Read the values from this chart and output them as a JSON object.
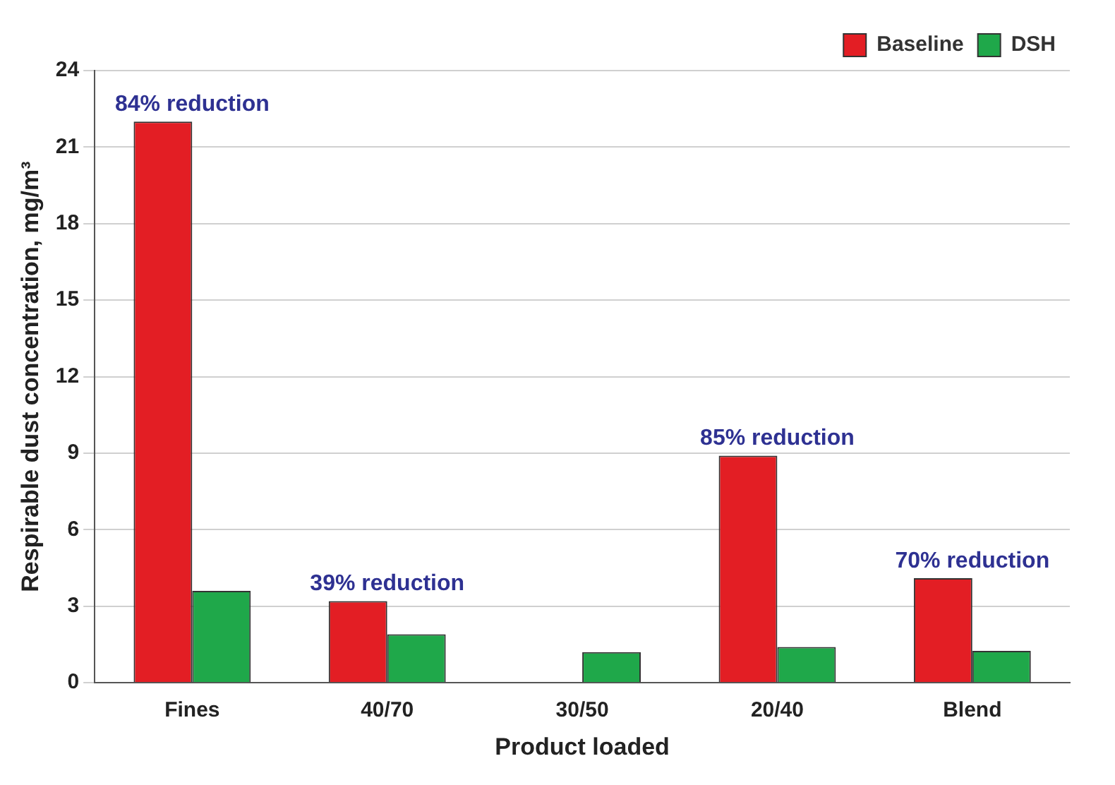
{
  "chart_data": {
    "type": "bar",
    "xlabel": "Product loaded",
    "ylabel": "Respirable dust concentration, mg/m³",
    "categories": [
      "Fines",
      "40/70",
      "30/50",
      "20/40",
      "Blend"
    ],
    "series": [
      {
        "name": "Baseline",
        "color": "#e31e24",
        "values": [
          22,
          3.2,
          null,
          8.9,
          4.1
        ]
      },
      {
        "name": "DSH",
        "color": "#1fa84a",
        "values": [
          3.6,
          1.9,
          1.2,
          1.4,
          1.25
        ]
      }
    ],
    "ylim": [
      0,
      24
    ],
    "yticks": [
      0,
      3,
      6,
      9,
      12,
      15,
      18,
      21,
      24
    ],
    "grid": "y",
    "legend": "top right",
    "annotations": [
      {
        "text": "84% reduction",
        "x": "Fines",
        "y": 22
      },
      {
        "text": "39% reduction",
        "x": "40/70",
        "y": 3.2
      },
      {
        "text": "85% reduction",
        "x": "20/40",
        "y": 8.9
      },
      {
        "text": "70% reduction",
        "x": "Blend",
        "y": 4.1
      }
    ]
  }
}
